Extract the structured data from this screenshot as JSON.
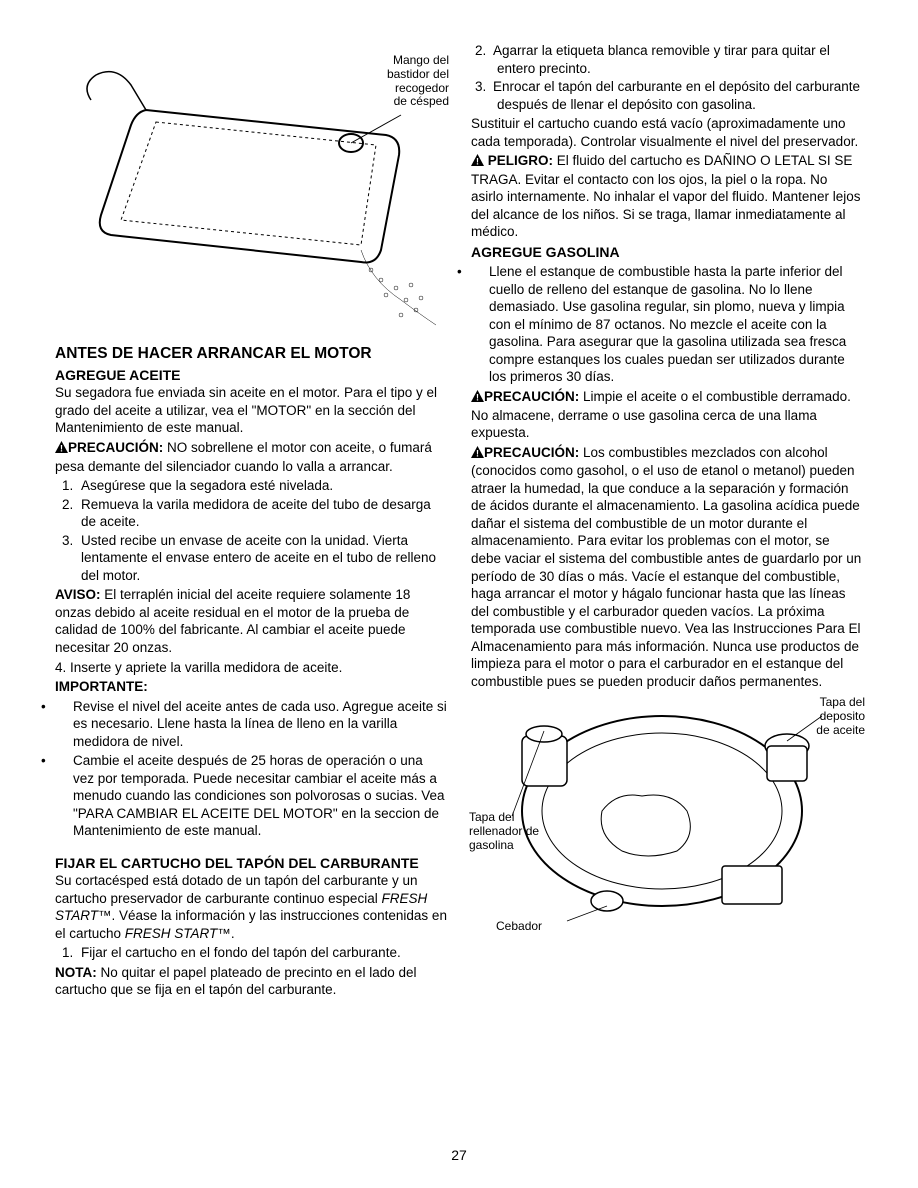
{
  "figure1": {
    "label": "Mango del\nbastidor del\nrecogedor\nde césped"
  },
  "left": {
    "h_main1": "ANTES DE HACER ARRANCAR EL MOTOR",
    "h_sub1": "AGREGUE ACEITE",
    "p1": "Su segadora fue enviada sin aceite en el motor. Para el tipo y el grado del aceite a utilizar, vea el \"MOTOR\" en la sección del Mantenimiento de este manual.",
    "prec1_label": "PRECAUCIÓN:",
    "prec1_body": " NO sobrellene el motor con aceite, o fumará pesa demante del silenciador cuando lo valla a arrancar.",
    "ol1": [
      "Asegúrese que la segadora esté nivelada.",
      "Remueva la varila medidora de aceite del tubo de desarga de aceite.",
      "Usted recibe un envase de aceite con la unidad.  Vierta lentamente el envase entero de aceite en el tubo de relleno del motor."
    ],
    "aviso_label": "AVISO:",
    "aviso_body": " El terraplén inicial del aceite requiere solamente 18 onzas debido al aceite residual en el motor de la prueba de calidad de 100% del fabricante. Al cambiar el aceite puede necesitar 20 onzas.",
    "p_4": "4.   Inserte y apriete la varilla medidora de aceite.",
    "imp_label": "IMPORTANTE:",
    "ul1": [
      "Revise el nivel del aceite antes de cada uso. Agregue aceite si es necesario. Llene hasta la línea de lleno en la varilla medidora de nivel.",
      "Cambie el aceite después de 25 horas de operación o una vez por temporada. Puede necesitar cambiar el aceite más a menudo cuando las condiciones son polvorosas o sucias.  Vea \"PARA CAMBIAR EL ACEITE DEL MOTOR\" en la seccion de Mantenimiento de este manual."
    ],
    "h_sub2": "FIJAR EL CARTUCHO DEL TAPÓN DEL CARBURANTE",
    "p2a": "Su cortacésped está dotado de un tapón del carburante y un cartucho preservador de carburante continuo especial ",
    "p2b": "FRESH START™",
    "p2c": ". Véase la información y las instrucciones contenidas en el cartucho ",
    "p2d": "FRESH START™",
    "p2e": ".",
    "ol2": [
      "Fijar el cartucho en el fondo del tapón del carburante."
    ],
    "nota_label": "NOTA:",
    "nota_body": " No quitar el papel plateado de precinto en el lado del cartucho que se fija en el tapón del carburante."
  },
  "right": {
    "ol_top": [
      "Agarrar la etiqueta blanca removible y tirar para quitar el entero precinto.",
      "Enrocar el tapón del carburante en el depósito del carburante después de llenar el depósito con gasolina."
    ],
    "p1": "Sustituir el cartucho cuando está vacío (aproximadamente uno cada temporada). Controlar visualmente el nivel del preservador.",
    "pel_label": " PELIGRO:",
    "pel_body": " El fluido del cartucho es DAÑINO O LETAL SI SE TRAGA. Evitar el contacto con los ojos, la piel o la ropa. No asirlo internamente. No inhalar el vapor del fluido. Mantener lejos del alcance de los niños. Si se traga, llamar inmediatamente al médico.",
    "h_sub1": "AGREGUE GASOLINA",
    "ul1": [
      "Llene el estanque de combustible hasta la parte inferior del cuello de relleno del estanque de gasolina. No lo llene demasiado. Use gasolina regular, sin plomo, nueva y limpia con el mínimo de 87 octanos. No mezcle el aceite con la gasolina.  Para asegurar que la gasolina utilizada sea fresca compre estanques los cuales puedan ser utilizados durante los primeros 30 días."
    ],
    "prec1_label": "PRECAUCIÓN:",
    "prec1_body": " Limpie el aceite o el combustible derramado. No almacene, derrame o use gasolina cerca de una llama expuesta.",
    "prec2_label": "PRECAUCIÓN:",
    "prec2_body": " Los combustibles mezclados con alcohol (conocidos como gasohol, o el uso de etanol o metanol) pueden atraer la humedad, la que conduce a la separación y formación de ácidos durante el almacenamiento. La gasolina acídica puede dañar el sistema del combustible de un motor durante el almacenamiento. Para evitar los problemas con el motor, se debe vaciar el sistema del combustible antes de guardarlo por un período de 30 días o más. Vacíe el estanque del combustible, haga arrancar el motor y hágalo funcionar hasta que las líneas del combustible y el carburador queden vacíos. La próxima temporada use combustible nuevo. Vea las Instrucciones Para El Almacenamiento para más información. Nunca use productos de limpieza para el motor o para el carburador en el estanque del combustible pues se pueden producir daños permanentes."
  },
  "figure2": {
    "label_oil": "Tapa del\ndeposito\nde aceite",
    "label_gas": "Tapa del\nrellenador de\ngasolina",
    "label_primer": "Cebador"
  },
  "page_number": "27"
}
